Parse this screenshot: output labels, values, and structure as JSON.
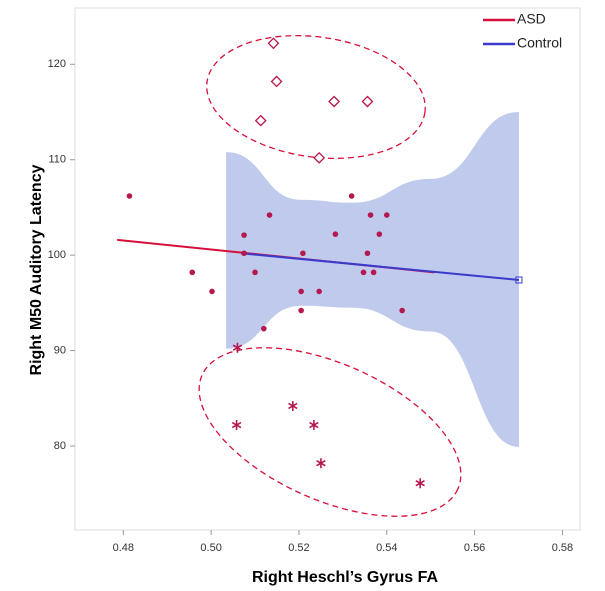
{
  "chart_data": {
    "type": "scatter",
    "x_label": "Right Heschl’s Gyrus FA",
    "y_label": "Right M50 Auditory Latency",
    "xlim": [
      0.469,
      0.584
    ],
    "ylim": [
      71.2,
      125.9
    ],
    "xticks": [
      0.48,
      {
        "value": 0.5,
        "label": "0.50"
      },
      0.52,
      0.54,
      0.56,
      0.58
    ],
    "yticks": [
      80,
      90,
      100,
      110,
      120
    ],
    "legend": "top-right",
    "points": [
      {
        "marker": "circle",
        "color": "#b5174f",
        "x": [
          0.4814,
          0.4957,
          0.5002,
          0.5075,
          0.5075,
          0.51,
          0.5133,
          0.512,
          0.5209,
          0.5205,
          0.5205,
          0.5246,
          0.5283,
          0.532,
          0.5363,
          0.54,
          0.5383,
          0.5356,
          0.5347,
          0.537,
          0.5435
        ],
        "values": [
          106.2,
          98.2,
          96.2,
          102.1,
          100.2,
          98.2,
          104.2,
          92.3,
          100.2,
          96.2,
          94.2,
          96.2,
          102.2,
          106.2,
          104.2,
          104.2,
          102.2,
          100.2,
          98.2,
          98.2,
          94.2
        ]
      },
      {
        "marker": "diamond",
        "color": "#b5174f",
        "x": [
          0.5142,
          0.5149,
          0.5113,
          0.528,
          0.5356,
          0.5246
        ],
        "values": [
          122.2,
          118.2,
          114.1,
          116.1,
          116.1,
          110.2
        ]
      },
      {
        "marker": "star",
        "color": "#b5174f",
        "x": [
          0.506,
          0.5058,
          0.5186,
          0.5234,
          0.525,
          0.5476
        ],
        "values": [
          90.3,
          82.2,
          84.2,
          82.2,
          78.2,
          76.1
        ]
      }
    ],
    "series": [
      {
        "name": "ASD",
        "color": "#d6103a",
        "x": [
          0.4786,
          0.5508
        ],
        "values": [
          101.6,
          98.2
        ]
      },
      {
        "name": "Control",
        "color": "#3a3acc",
        "x": [
          0.5068,
          0.5701
        ],
        "values": [
          100.2,
          97.4
        ]
      }
    ],
    "band": {
      "color": "#a9b8e6",
      "x": [
        0.5034,
        0.5205,
        0.532,
        0.55,
        0.5701
      ],
      "upper": [
        110.8,
        105.8,
        105.5,
        108,
        115
      ],
      "lower": [
        90.2,
        94.7,
        94.5,
        92,
        79.9
      ]
    }
  }
}
